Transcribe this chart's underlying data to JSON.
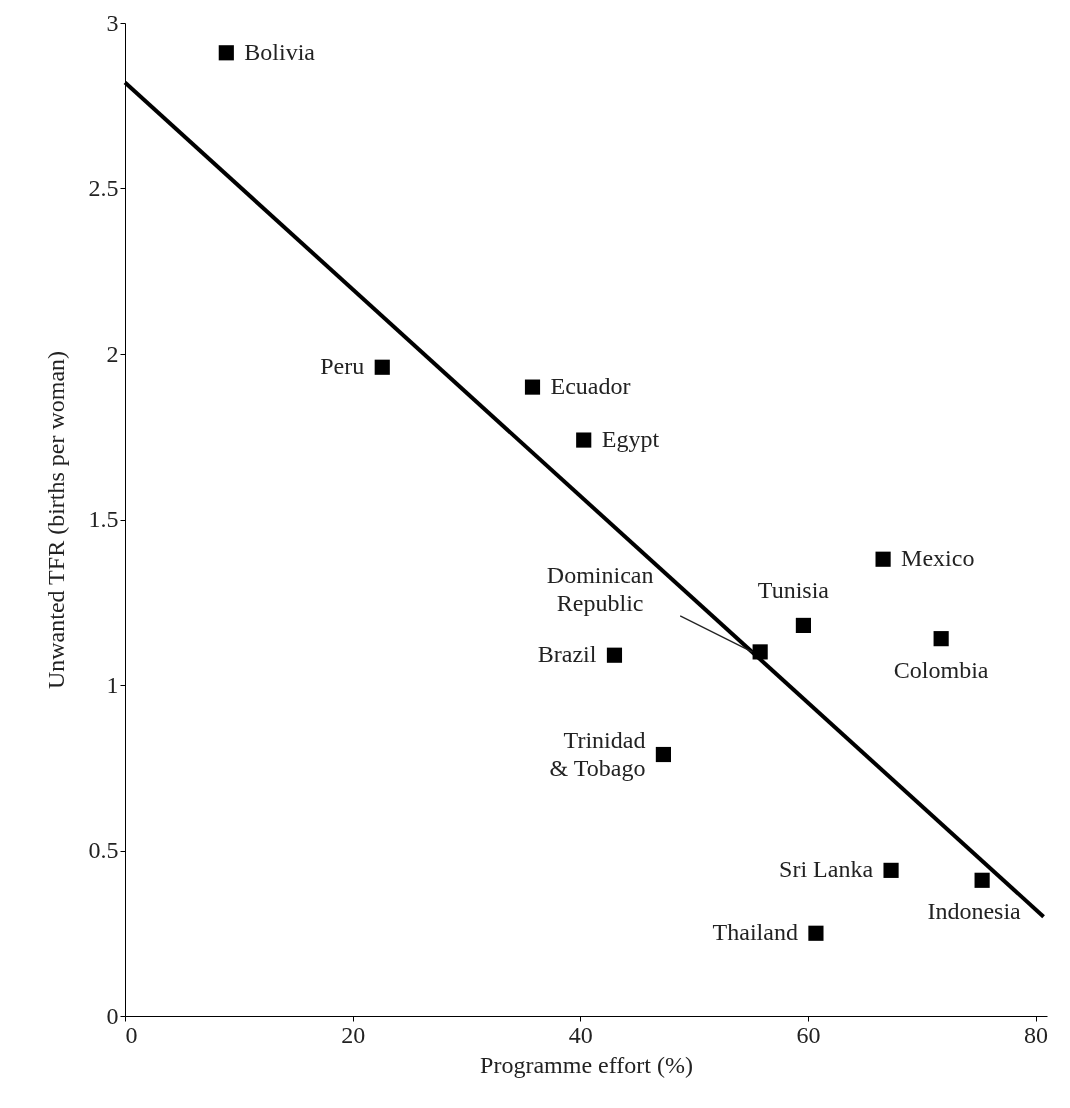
{
  "chart_data": {
    "type": "scatter",
    "xlabel": "Programme effort (%)",
    "ylabel": "Unwanted TFR (births per woman)",
    "x": [
      8.9,
      22.6,
      35.8,
      40.3,
      66.6,
      59.6,
      71.7,
      55.8,
      43.0,
      47.3,
      67.3,
      75.3,
      60.7
    ],
    "series": [
      {
        "color": "#000000",
        "marker": "square",
        "values": [
          2.91,
          1.96,
          1.9,
          1.74,
          1.38,
          1.18,
          1.14,
          1.1,
          1.09,
          0.79,
          0.44,
          0.41,
          0.25
        ]
      },
      {
        "type": "line",
        "color": "#000000",
        "x": [
          0,
          80.7
        ],
        "values": [
          2.82,
          0.3
        ]
      }
    ],
    "annotations": [
      {
        "text": "Bolivia",
        "x": 8.9,
        "y": 2.91
      },
      {
        "text": "Peru",
        "x": 22.6,
        "y": 1.96
      },
      {
        "text": "Ecuador",
        "x": 35.8,
        "y": 1.9
      },
      {
        "text": "Egypt",
        "x": 40.3,
        "y": 1.74
      },
      {
        "text": "Mexico",
        "x": 66.6,
        "y": 1.38
      },
      {
        "text": "Tunisia",
        "x": 59.6,
        "y": 1.18
      },
      {
        "text": "Colombia",
        "x": 71.7,
        "y": 1.14
      },
      {
        "text": "Dominican\nRepublic",
        "x": 55.8,
        "y": 1.1
      },
      {
        "text": "Brazil",
        "x": 43.0,
        "y": 1.09
      },
      {
        "text": "Trinidad\n& Tobago",
        "x": 47.3,
        "y": 0.79
      },
      {
        "text": "Sri Lanka",
        "x": 67.3,
        "y": 0.44
      },
      {
        "text": "Indonesia",
        "x": 75.3,
        "y": 0.41
      },
      {
        "text": "Thailand",
        "x": 60.7,
        "y": 0.25
      }
    ],
    "xlim": [
      0,
      81
    ],
    "xticks": [
      0,
      20,
      40,
      60,
      80
    ],
    "ylim": [
      0,
      3
    ],
    "yticks": [
      0,
      0.5,
      1,
      1.5,
      2,
      2.5,
      3
    ],
    "grid": false
  }
}
